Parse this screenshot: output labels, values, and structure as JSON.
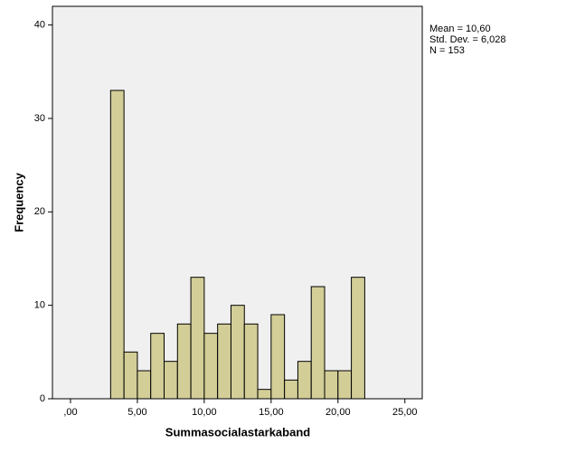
{
  "chart_data": {
    "type": "histogram",
    "x_label": "Summasocialastarkaband",
    "y_label": "Frequency",
    "bins": [
      3,
      4,
      5,
      6,
      7,
      8,
      9,
      10,
      11,
      12,
      13,
      14,
      15,
      16,
      17,
      18,
      19,
      20,
      21,
      22
    ],
    "values": [
      33,
      5,
      3,
      7,
      4,
      8,
      13,
      7,
      8,
      10,
      8,
      1,
      9,
      2,
      4,
      12,
      3,
      3,
      13
    ],
    "color": "#d3ce97",
    "xlim": [
      -1.35,
      26.3
    ],
    "ylim": [
      0,
      42
    ],
    "xticks": [
      {
        "value": 0,
        "label": ",00"
      },
      {
        "value": 5,
        "label": "5,00"
      },
      {
        "value": 10,
        "label": "10,00"
      },
      {
        "value": 15,
        "label": "15,00"
      },
      {
        "value": 20,
        "label": "20,00"
      },
      {
        "value": 25,
        "label": "25,00"
      }
    ],
    "yticks": [
      0,
      10,
      20,
      30,
      40
    ],
    "grid": false,
    "annotations": [
      "Mean = 10,60",
      "Std. Dev. = 6,028",
      "N = 153"
    ]
  }
}
